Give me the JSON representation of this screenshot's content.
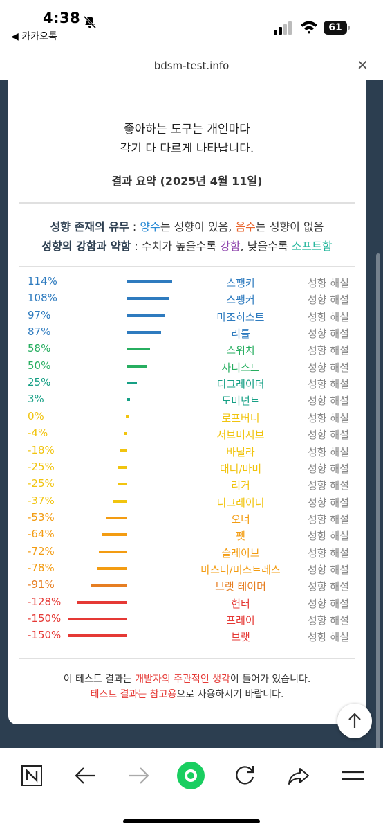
{
  "status": {
    "time": "4:38",
    "back_app": "◀ 카카오톡",
    "battery": "61"
  },
  "browser": {
    "url": "bdsm-test.info"
  },
  "intro": {
    "line1": "좋아하는 도구는 개인마다",
    "line2": "각기 다 다르게 나타납니다."
  },
  "summary": {
    "title": "결과 요약 (2025년 4월 11일)",
    "legend1": {
      "label": "성향 존재의 유무",
      "sep": " : ",
      "pos": "양수",
      "pos_text": "는 성향이 있음, ",
      "neg": "음수",
      "neg_text": "는 성향이 없음"
    },
    "legend2": {
      "label": "성향의 강함과 약함",
      "sep": " : 수치가 높을수록 ",
      "strong": "강함",
      "mid": ", 낮을수록 ",
      "soft": "소프트함"
    },
    "interp_label": "성향 해설"
  },
  "results": [
    {
      "pct": "114%",
      "value": 114,
      "name": "스팽키",
      "color": "#2e7bbf"
    },
    {
      "pct": "108%",
      "value": 108,
      "name": "스팽커",
      "color": "#2e7bbf"
    },
    {
      "pct": "97%",
      "value": 97,
      "name": "마조히스트",
      "color": "#2e7bbf"
    },
    {
      "pct": "87%",
      "value": 87,
      "name": "리틀",
      "color": "#2e7bbf"
    },
    {
      "pct": "58%",
      "value": 58,
      "name": "스위치",
      "color": "#27ae60"
    },
    {
      "pct": "50%",
      "value": 50,
      "name": "사디스트",
      "color": "#27ae60"
    },
    {
      "pct": "25%",
      "value": 25,
      "name": "디그레이더",
      "color": "#16a085"
    },
    {
      "pct": "3%",
      "value": 3,
      "name": "도미넌트",
      "color": "#16a085"
    },
    {
      "pct": "0%",
      "value": 0,
      "name": "로프버니",
      "color": "#f1c40f"
    },
    {
      "pct": "-4%",
      "value": -4,
      "name": "서브미시브",
      "color": "#f1c40f"
    },
    {
      "pct": "-18%",
      "value": -18,
      "name": "바닐라",
      "color": "#f1c40f"
    },
    {
      "pct": "-25%",
      "value": -25,
      "name": "대디/마미",
      "color": "#f1c40f"
    },
    {
      "pct": "-25%",
      "value": -25,
      "name": "리거",
      "color": "#f1c40f"
    },
    {
      "pct": "-37%",
      "value": -37,
      "name": "디그레이디",
      "color": "#f1c40f"
    },
    {
      "pct": "-53%",
      "value": -53,
      "name": "오너",
      "color": "#f39c12"
    },
    {
      "pct": "-64%",
      "value": -64,
      "name": "펫",
      "color": "#f39c12"
    },
    {
      "pct": "-72%",
      "value": -72,
      "name": "슬레이브",
      "color": "#f39c12"
    },
    {
      "pct": "-78%",
      "value": -78,
      "name": "마스터/미스트레스",
      "color": "#f39c12"
    },
    {
      "pct": "-91%",
      "value": -91,
      "name": "브랫 테이머",
      "color": "#e67e22"
    },
    {
      "pct": "-128%",
      "value": -128,
      "name": "헌터",
      "color": "#e53935"
    },
    {
      "pct": "-150%",
      "value": -150,
      "name": "프레이",
      "color": "#e53935"
    },
    {
      "pct": "-150%",
      "value": -150,
      "name": "브랫",
      "color": "#e53935"
    }
  ],
  "footer": {
    "l1_a": "이 테스트 결과는 ",
    "l1_b": "개발자의 주관적인 생각",
    "l1_c": "이 들어가 있습니다.",
    "l2_a": "테스트 결과는 참고용",
    "l2_b": "으로 사용하시기 바랍니다."
  }
}
